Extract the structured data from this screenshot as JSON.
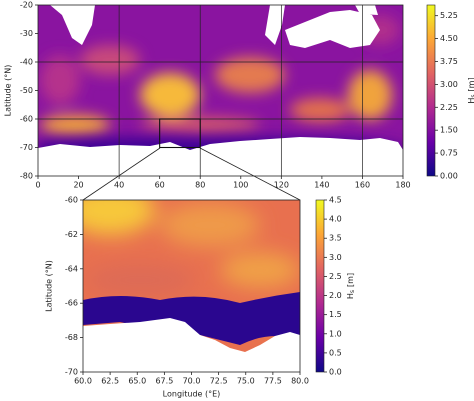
{
  "chart_data": [
    {
      "type": "heatmap",
      "xlabel": null,
      "ylabel": "Latitude (°N)",
      "xlim": [
        0,
        180
      ],
      "xticks": [
        0,
        20,
        40,
        60,
        80,
        100,
        120,
        140,
        160,
        180
      ],
      "ylim": [
        -80,
        -20
      ],
      "yticks": [
        -20,
        -30,
        -40,
        -50,
        -60,
        -70,
        -80
      ],
      "grid_x": [
        40,
        80,
        120,
        160
      ],
      "grid_y": [
        -40,
        -60
      ],
      "zoom_box": {
        "lon": [
          60,
          80
        ],
        "lat": [
          -70,
          -60
        ]
      },
      "colorbar": {
        "label": {
          "base": "H",
          "sub": "s",
          "unit": "[m]"
        },
        "lim": [
          0,
          5.6
        ],
        "ticks": [
          {
            "value": 0,
            "label": "0.00"
          },
          {
            "value": 0.75,
            "label": "0.75"
          },
          {
            "value": 1.5,
            "label": "1.50"
          },
          {
            "value": 2.25,
            "label": "2.25"
          },
          {
            "value": 3,
            "label": "3.00"
          },
          {
            "value": 3.75,
            "label": "3.75"
          },
          {
            "value": 4.5,
            "label": "4.50"
          },
          {
            "value": 5.25,
            "label": "5.25"
          }
        ]
      },
      "colormap": [
        "#0d0887",
        "#6a00a8",
        "#b12a90",
        "#e16462",
        "#fca636",
        "#f0f921"
      ]
    },
    {
      "type": "heatmap",
      "xlabel": "Longitude (°E)",
      "ylabel": "Latitude (°N)",
      "xlim": [
        60,
        80
      ],
      "xticks": [
        {
          "value": 60,
          "label": "60.0"
        },
        {
          "value": 62.5,
          "label": "62.5"
        },
        {
          "value": 65,
          "label": "65.0"
        },
        {
          "value": 67.5,
          "label": "67.5"
        },
        {
          "value": 70,
          "label": "70.0"
        },
        {
          "value": 72.5,
          "label": "72.5"
        },
        {
          "value": 75,
          "label": "75.0"
        },
        {
          "value": 77.5,
          "label": "77.5"
        },
        {
          "value": 80,
          "label": "80.0"
        }
      ],
      "ylim": [
        -70,
        -60
      ],
      "yticks": [
        -60,
        -62,
        -64,
        -66,
        -68,
        -70
      ],
      "colorbar": {
        "label": {
          "base": "H",
          "sub": "s",
          "unit": "[m]"
        },
        "lim": [
          0,
          4.5
        ],
        "ticks": [
          {
            "value": 0,
            "label": "0.0"
          },
          {
            "value": 0.5,
            "label": "0.5"
          },
          {
            "value": 1,
            "label": "1.0"
          },
          {
            "value": 1.5,
            "label": "1.5"
          },
          {
            "value": 2,
            "label": "2.0"
          },
          {
            "value": 2.5,
            "label": "2.5"
          },
          {
            "value": 3,
            "label": "3.0"
          },
          {
            "value": 3.5,
            "label": "3.5"
          },
          {
            "value": 4,
            "label": "4.0"
          },
          {
            "value": 4.5,
            "label": "4.5"
          }
        ]
      },
      "colormap": [
        "#0d0887",
        "#6a00a8",
        "#b12a90",
        "#e16462",
        "#fca636",
        "#f0f921"
      ]
    }
  ]
}
